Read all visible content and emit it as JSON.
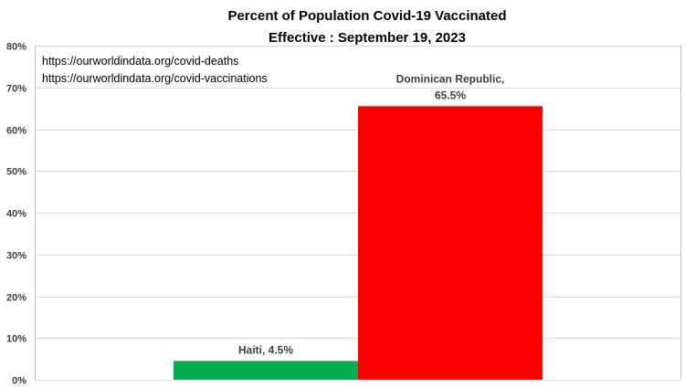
{
  "chart_data": {
    "type": "bar",
    "title": "Percent of Population Covid-19 Vaccinated",
    "subtitle": "Effective : September 19, 2023",
    "categories": [
      "Haiti",
      "Dominican Republic"
    ],
    "values": [
      4.5,
      65.5
    ],
    "data_labels": [
      [
        "Haiti, 4.5%"
      ],
      [
        "Dominican Republic,",
        "65.5%"
      ]
    ],
    "colors": [
      "#00b050",
      "#ff0000"
    ],
    "ylim": [
      0,
      80
    ],
    "y_ticks": [
      0,
      10,
      20,
      30,
      40,
      50,
      60,
      70,
      80
    ],
    "y_tick_labels": [
      "0%",
      "10%",
      "20%",
      "30%",
      "40%",
      "50%",
      "60%",
      "70%",
      "80%"
    ],
    "grid": true,
    "annotations": [
      "https://ourworldindata.org/covid-deaths",
      "https://ourworldindata.org/covid-vaccinations"
    ]
  }
}
